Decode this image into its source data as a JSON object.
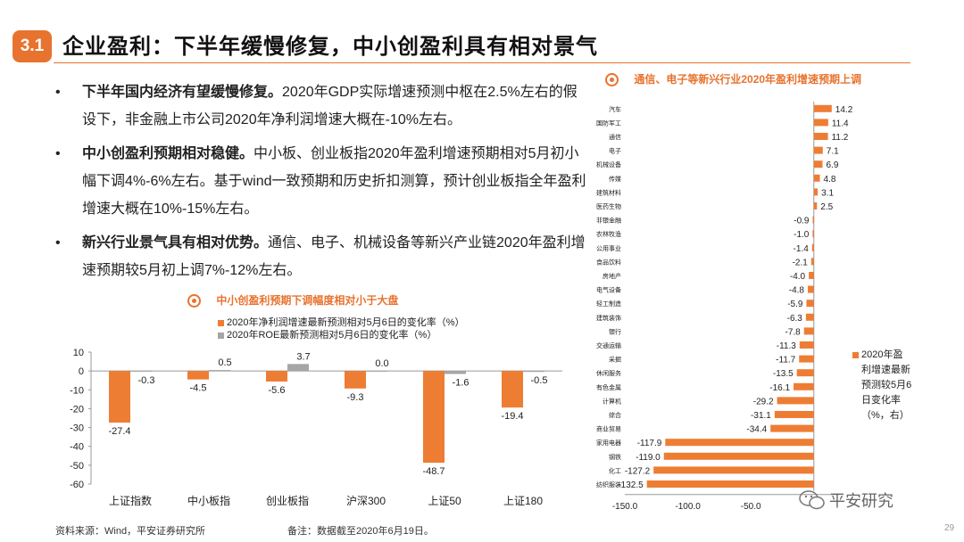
{
  "header": {
    "section_number": "3.1",
    "title": "企业盈利：下半年缓慢修复，中小创盈利具有相对景气"
  },
  "bullets": [
    {
      "bold": "下半年国内经济有望缓慢修复。",
      "text": "2020年GDP实际增速预测中枢在2.5%左右的假设下，非金融上市公司2020年净利润增速大概在-10%左右。"
    },
    {
      "bold": "中小创盈利预期相对稳健。",
      "text": "中小板、创业板指2020年盈利增速预期相对5月初小幅下调4%-6%左右。基于wind一致预期和历史折扣测算，预计创业板指全年盈利增速大概在10%-15%左右。"
    },
    {
      "bold": "新兴行业景气具有相对优势。",
      "text": "通信、电子、机械设备等新兴产业链2020年盈利增速预期较5月初上调7%-12%左右。"
    }
  ],
  "bullet_symbol": "•",
  "colors": {
    "orange": "#ee7d34",
    "gray": "#a6a6a6",
    "accent": "#e8732e"
  },
  "chart_data": [
    {
      "type": "bar",
      "title": "中小创盈利预期下调幅度相对小于大盘",
      "categories": [
        "上证指数",
        "中小板指",
        "创业板指",
        "沪深300",
        "上证50",
        "上证180"
      ],
      "series": [
        {
          "name": "2020年净利润增速最新预测相对5月6日的变化率（%）",
          "values": [
            -27.4,
            -4.5,
            -5.6,
            -9.3,
            -48.7,
            -19.4
          ],
          "labels": [
            "-27.4",
            "-4.5",
            "-5.6",
            "-9.3",
            "-48.7",
            "-19.4"
          ]
        },
        {
          "name": "2020年ROE最新预测相对5月6日的变化率（%）",
          "values": [
            -0.3,
            0.5,
            3.7,
            0.0,
            -1.6,
            -0.5
          ],
          "labels": [
            "-0.3",
            "0.5",
            "3.7",
            "0.0",
            "-1.6",
            "-0.5"
          ]
        }
      ],
      "yticks": [
        "10",
        "0",
        "-10",
        "-20",
        "-30",
        "-40",
        "-50",
        "-60"
      ],
      "ylim": [
        -60,
        10
      ]
    },
    {
      "type": "bar",
      "orientation": "horizontal",
      "title": "通信、电子等新兴行业2020年盈利增速预期上调",
      "categories": [
        "汽车",
        "国防军工",
        "通信",
        "电子",
        "机械设备",
        "传媒",
        "建筑材料",
        "医药生物",
        "非银金融",
        "农林牧渔",
        "公用事业",
        "食品饮料",
        "房地产",
        "电气设备",
        "轻工制造",
        "建筑装饰",
        "银行",
        "交通运输",
        "采掘",
        "休闲服务",
        "有色金属",
        "计算机",
        "综合",
        "商业贸易",
        "家用电器",
        "钢铁",
        "化工",
        "纺织服装"
      ],
      "series": [
        {
          "name": "2020年盈利增速最新预测较5月6日变化率（%，右）",
          "values": [
            14.2,
            11.4,
            11.2,
            7.1,
            6.9,
            4.8,
            3.1,
            2.5,
            -0.9,
            -1.0,
            -1.4,
            -2.1,
            -4.0,
            -4.8,
            -5.9,
            -6.3,
            -7.8,
            -11.3,
            -11.7,
            -13.5,
            -16.1,
            -29.2,
            -31.1,
            -34.4,
            -117.9,
            -119.0,
            -127.2,
            -132.5
          ],
          "labels": [
            "14.2",
            "11.4",
            "11.2",
            "7.1",
            "6.9",
            "4.8",
            "3.1",
            "2.5",
            "-0.9",
            "-1.0",
            "-1.4",
            "-2.1",
            "-4.0",
            "-4.8",
            "-5.9",
            "-6.3",
            "-7.8",
            "-11.3",
            "-11.7",
            "-13.5",
            "-16.1",
            "-29.2",
            "-31.1",
            "-34.4",
            "-117.9",
            "-119.0",
            "-127.2",
            "-132.5"
          ]
        }
      ],
      "xticks": [
        "-150.0",
        "-100.0",
        "-50.0"
      ],
      "xlim": [
        -150,
        20
      ],
      "legend_lines": [
        "2020年盈",
        "利增速最新",
        "预测较5月6",
        "日变化率",
        "（%，右）"
      ]
    }
  ],
  "footer": {
    "source": "资料来源：Wind，平安证券研究所",
    "note": "备注：数据截至2020年6月19日。",
    "logo_text": "平安研究",
    "page_number": "29"
  }
}
